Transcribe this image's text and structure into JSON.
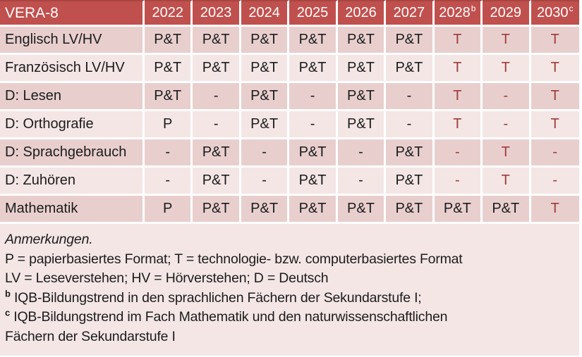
{
  "table": {
    "title": "VERA-8",
    "year_columns": [
      {
        "label": "2022",
        "sup": ""
      },
      {
        "label": "2023",
        "sup": ""
      },
      {
        "label": "2024",
        "sup": ""
      },
      {
        "label": "2025",
        "sup": ""
      },
      {
        "label": "2026",
        "sup": ""
      },
      {
        "label": "2027",
        "sup": ""
      },
      {
        "label": "2028",
        "sup": "b"
      },
      {
        "label": "2029",
        "sup": ""
      },
      {
        "label": "2030",
        "sup": "c"
      }
    ],
    "rows": [
      {
        "label": "Englisch LV/HV",
        "cells": [
          {
            "text": "P&T",
            "red": false
          },
          {
            "text": "P&T",
            "red": false
          },
          {
            "text": "P&T",
            "red": false
          },
          {
            "text": "P&T",
            "red": false
          },
          {
            "text": "P&T",
            "red": false
          },
          {
            "text": "P&T",
            "red": false
          },
          {
            "text": "T",
            "red": true
          },
          {
            "text": "T",
            "red": true
          },
          {
            "text": "T",
            "red": true
          }
        ]
      },
      {
        "label": "Französisch LV/HV",
        "cells": [
          {
            "text": "P&T",
            "red": false
          },
          {
            "text": "P&T",
            "red": false
          },
          {
            "text": "P&T",
            "red": false
          },
          {
            "text": "P&T",
            "red": false
          },
          {
            "text": "P&T",
            "red": false
          },
          {
            "text": "P&T",
            "red": false
          },
          {
            "text": "T",
            "red": true
          },
          {
            "text": "T",
            "red": true
          },
          {
            "text": "T",
            "red": true
          }
        ]
      },
      {
        "label": "D: Lesen",
        "cells": [
          {
            "text": "P&T",
            "red": false
          },
          {
            "text": "-",
            "red": false
          },
          {
            "text": "P&T",
            "red": false
          },
          {
            "text": "-",
            "red": false
          },
          {
            "text": "P&T",
            "red": false
          },
          {
            "text": "-",
            "red": false
          },
          {
            "text": "T",
            "red": true
          },
          {
            "text": "-",
            "red": true
          },
          {
            "text": "T",
            "red": true
          }
        ]
      },
      {
        "label": "D: Orthografie",
        "cells": [
          {
            "text": "P",
            "red": false
          },
          {
            "text": "-",
            "red": false
          },
          {
            "text": "P&T",
            "red": false
          },
          {
            "text": "-",
            "red": false
          },
          {
            "text": "P&T",
            "red": false
          },
          {
            "text": "-",
            "red": false
          },
          {
            "text": "T",
            "red": true
          },
          {
            "text": "-",
            "red": true
          },
          {
            "text": "T",
            "red": true
          }
        ]
      },
      {
        "label": "D: Sprachgebrauch",
        "cells": [
          {
            "text": "-",
            "red": false
          },
          {
            "text": "P&T",
            "red": false
          },
          {
            "text": "-",
            "red": false
          },
          {
            "text": "P&T",
            "red": false
          },
          {
            "text": "-",
            "red": false
          },
          {
            "text": "P&T",
            "red": false
          },
          {
            "text": "-",
            "red": true
          },
          {
            "text": "T",
            "red": true
          },
          {
            "text": "-",
            "red": true
          }
        ]
      },
      {
        "label": "D: Zuhören",
        "cells": [
          {
            "text": "-",
            "red": false
          },
          {
            "text": "P&T",
            "red": false
          },
          {
            "text": "-",
            "red": false
          },
          {
            "text": "P&T",
            "red": false
          },
          {
            "text": "-",
            "red": false
          },
          {
            "text": "P&T",
            "red": false
          },
          {
            "text": "-",
            "red": true
          },
          {
            "text": "T",
            "red": true
          },
          {
            "text": "-",
            "red": true
          }
        ]
      },
      {
        "label": "Mathematik",
        "cells": [
          {
            "text": "P",
            "red": false
          },
          {
            "text": "P&T",
            "red": false
          },
          {
            "text": "P&T",
            "red": false
          },
          {
            "text": "P&T",
            "red": false
          },
          {
            "text": "P&T",
            "red": false
          },
          {
            "text": "P&T",
            "red": false
          },
          {
            "text": "P&T",
            "red": false
          },
          {
            "text": "P&T",
            "red": false
          },
          {
            "text": "T",
            "red": true
          }
        ]
      }
    ]
  },
  "notes": {
    "lines": [
      {
        "text": "Anmerkungen.",
        "sup": "",
        "italic": true
      },
      {
        "text": "P = papierbasiertes Format; T = technologie- bzw. computerbasiertes Format",
        "sup": "",
        "italic": false
      },
      {
        "text": "LV = Leseverstehen; HV = Hörverstehen; D = Deutsch",
        "sup": "",
        "italic": false
      },
      {
        "text": "IQB-Bildungstrend in den sprachlichen Fächern der Sekundarstufe I;",
        "sup": "b",
        "italic": false
      },
      {
        "text": "IQB-Bildungstrend im Fach Mathematik und den naturwissenschaftlichen",
        "sup": "c",
        "italic": false
      },
      {
        "text": "Fächern der Sekundarstufe I",
        "sup": "",
        "italic": false
      }
    ]
  },
  "colors": {
    "header_bg": "#c0504d",
    "header_text": "#ffffff",
    "row_band_dark": "#e8cfce",
    "row_band_light": "#f3e6e5",
    "notes_bg": "#f3e6e5",
    "technology_text": "#9e3b38",
    "body_text": "#1c1c1c",
    "grid_line": "#ffffff"
  }
}
